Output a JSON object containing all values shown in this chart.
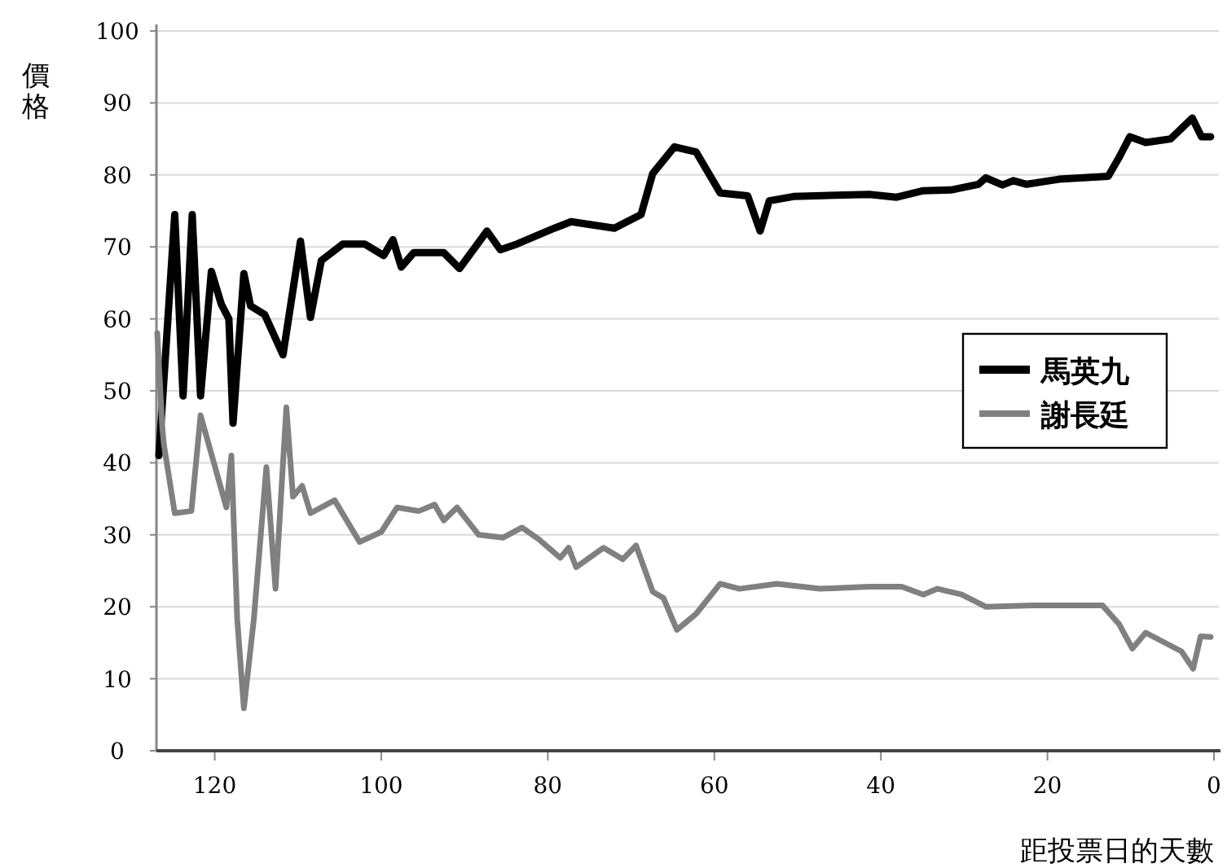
{
  "chart_data": {
    "type": "line",
    "xlabel": "距投票日的天數",
    "ylabel": "價格",
    "xlim": [
      127,
      0
    ],
    "xticks": [
      120,
      100,
      80,
      60,
      40,
      20,
      0
    ],
    "ylim": [
      0,
      100
    ],
    "yticks": [
      0,
      10,
      20,
      30,
      40,
      50,
      60,
      70,
      80,
      90,
      100
    ],
    "grid": "y",
    "legend": "right",
    "marker": "none",
    "line_style": "solid",
    "series": [
      {
        "name": "馬英九",
        "color": "#000000",
        "x": [
          126.7,
          124.8,
          123.8,
          122.7,
          121.7,
          120.4,
          119.2,
          118.3,
          117.8,
          116.5,
          115.7,
          114.0,
          111.8,
          109.7,
          108.5,
          107.2,
          104.6,
          102.0,
          99.7,
          98.6,
          97.6,
          96.1,
          92.5,
          90.6,
          87.3,
          85.7,
          83.7,
          79.2,
          77.2,
          72.0,
          68.8,
          67.4,
          64.8,
          62.2,
          59.3,
          56.0,
          54.5,
          53.4,
          50.5,
          41.4,
          38.1,
          34.9,
          31.6,
          28.3,
          27.4,
          25.4,
          24.1,
          22.5,
          18.6,
          12.7,
          11.4,
          10.1,
          8.2,
          5.2,
          2.6,
          1.5,
          0.4
        ],
        "values": [
          41,
          74.5,
          49.3,
          74.5,
          49.3,
          66.6,
          62,
          60,
          45.5,
          66.3,
          61.8,
          60.6,
          55,
          70.8,
          60.2,
          68.1,
          70.4,
          70.4,
          68.8,
          71,
          67.2,
          69.2,
          69.2,
          67,
          72.2,
          69.6,
          70.4,
          72.6,
          73.5,
          72.6,
          74.5,
          80.2,
          83.9,
          83.2,
          77.5,
          77.1,
          72.2,
          76.4,
          77,
          77.3,
          76.9,
          77.8,
          77.9,
          78.7,
          79.6,
          78.6,
          79.2,
          78.7,
          79.4,
          79.8,
          82.4,
          85.3,
          84.5,
          85,
          87.9,
          85.3,
          85.3
        ]
      },
      {
        "name": "謝長廷",
        "color": "#808080",
        "x": [
          126.9,
          126.3,
          126.1,
          124.8,
          122.8,
          121.7,
          118.6,
          118.0,
          117.3,
          116.5,
          115.3,
          113.8,
          112.7,
          111.4,
          110.6,
          109.5,
          108.5,
          105.6,
          102.6,
          100.0,
          98.1,
          95.5,
          93.6,
          92.5,
          90.9,
          88.3,
          85.4,
          83.1,
          81.1,
          78.5,
          77.5,
          76.6,
          73.3,
          71.0,
          69.4,
          67.4,
          66.1,
          64.5,
          62.2,
          59.3,
          57.0,
          52.5,
          47.3,
          41.4,
          37.5,
          34.9,
          33.2,
          30.3,
          27.4,
          21.8,
          13.4,
          11.4,
          9.8,
          8.2,
          3.9,
          2.5,
          1.6,
          0.4
        ],
        "values": [
          58,
          45,
          42.5,
          33,
          33.3,
          46.6,
          33.8,
          41,
          18.3,
          5.9,
          18.3,
          39.4,
          22.5,
          47.7,
          35.3,
          36.8,
          33,
          34.8,
          29,
          30.4,
          33.8,
          33.3,
          34.2,
          32,
          33.8,
          30,
          29.6,
          31,
          29.4,
          26.8,
          28.2,
          25.5,
          28.2,
          26.6,
          28.5,
          22.1,
          21.2,
          16.8,
          19,
          23.2,
          22.5,
          23.2,
          22.5,
          22.8,
          22.8,
          21.7,
          22.5,
          21.7,
          20,
          20.2,
          20.2,
          17.6,
          14.2,
          16.4,
          13.8,
          11.4,
          15.9,
          15.8
        ]
      }
    ]
  }
}
